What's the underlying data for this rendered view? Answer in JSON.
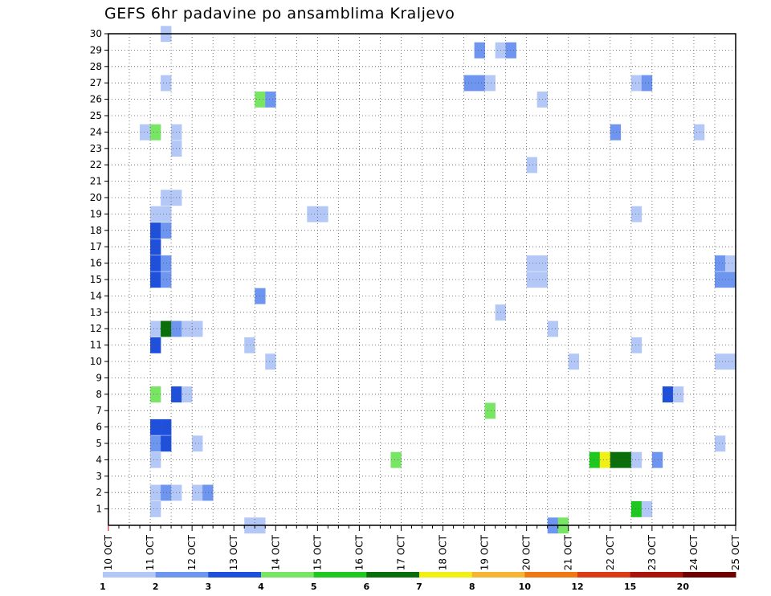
{
  "chart_data": {
    "type": "heatmap",
    "title": "GEFS 6hr padavine po ansamblima Kraljevo",
    "xlabel": "",
    "ylabel": "",
    "x_tick_labels": [
      "10 OCT",
      "11 OCT",
      "12 OCT",
      "13 OCT",
      "14 OCT",
      "15 OCT",
      "16 OCT",
      "17 OCT",
      "18 OCT",
      "19 OCT",
      "20 OCT",
      "21 OCT",
      "22 OCT",
      "23 OCT",
      "24 OCT",
      "25 OCT"
    ],
    "x_range_days": [
      10,
      25
    ],
    "steps_per_day": 4,
    "y_tick_labels": [
      1,
      2,
      3,
      4,
      5,
      6,
      7,
      8,
      9,
      10,
      11,
      12,
      13,
      14,
      15,
      16,
      17,
      18,
      19,
      20,
      21,
      22,
      23,
      24,
      25,
      26,
      27,
      28,
      29,
      30
    ],
    "y_range": [
      0,
      30
    ],
    "grid": true,
    "legend_position": "bottom",
    "legend": {
      "colors": [
        "#b4c8f8",
        "#6e96f0",
        "#1e50dc",
        "#78e664",
        "#1ec81e",
        "#0a6e0a",
        "#f0f014",
        "#f5b432",
        "#f07814",
        "#dc3c14",
        "#aa140a",
        "#6e0000"
      ],
      "labels": [
        "1",
        "2",
        "3",
        "4",
        "5",
        "6",
        "7",
        "8",
        "10",
        "12",
        "15",
        "20"
      ]
    },
    "cells": [
      {
        "member": 30,
        "day": 11.25,
        "cls": 1
      },
      {
        "member": 29,
        "day": 18.75,
        "cls": 2
      },
      {
        "member": 29,
        "day": 19.25,
        "cls": 1
      },
      {
        "member": 29,
        "day": 19.5,
        "cls": 2
      },
      {
        "member": 27,
        "day": 11.25,
        "cls": 1
      },
      {
        "member": 27,
        "day": 18.5,
        "cls": 2
      },
      {
        "member": 27,
        "day": 18.75,
        "cls": 2
      },
      {
        "member": 27,
        "day": 19.0,
        "cls": 1
      },
      {
        "member": 27,
        "day": 22.5,
        "cls": 1
      },
      {
        "member": 27,
        "day": 22.75,
        "cls": 2
      },
      {
        "member": 26,
        "day": 13.5,
        "cls": 4
      },
      {
        "member": 26,
        "day": 13.75,
        "cls": 2
      },
      {
        "member": 26,
        "day": 20.25,
        "cls": 1
      },
      {
        "member": 24,
        "day": 10.75,
        "cls": 1
      },
      {
        "member": 24,
        "day": 11.0,
        "cls": 4
      },
      {
        "member": 24,
        "day": 11.5,
        "cls": 1
      },
      {
        "member": 24,
        "day": 22.0,
        "cls": 2
      },
      {
        "member": 24,
        "day": 24.0,
        "cls": 1
      },
      {
        "member": 23,
        "day": 11.5,
        "cls": 1
      },
      {
        "member": 22,
        "day": 20.0,
        "cls": 1
      },
      {
        "member": 20,
        "day": 11.25,
        "cls": 1
      },
      {
        "member": 20,
        "day": 11.5,
        "cls": 1
      },
      {
        "member": 19,
        "day": 11.0,
        "cls": 1
      },
      {
        "member": 19,
        "day": 11.25,
        "cls": 1
      },
      {
        "member": 19,
        "day": 14.75,
        "cls": 1
      },
      {
        "member": 19,
        "day": 15.0,
        "cls": 1
      },
      {
        "member": 19,
        "day": 22.5,
        "cls": 1
      },
      {
        "member": 18,
        "day": 11.0,
        "cls": 3
      },
      {
        "member": 18,
        "day": 11.25,
        "cls": 2
      },
      {
        "member": 17,
        "day": 11.0,
        "cls": 3
      },
      {
        "member": 16,
        "day": 11.0,
        "cls": 3
      },
      {
        "member": 16,
        "day": 11.25,
        "cls": 2
      },
      {
        "member": 16,
        "day": 20.0,
        "cls": 1
      },
      {
        "member": 16,
        "day": 20.25,
        "cls": 1
      },
      {
        "member": 16,
        "day": 24.5,
        "cls": 2
      },
      {
        "member": 16,
        "day": 24.75,
        "cls": 1
      },
      {
        "member": 15,
        "day": 11.0,
        "cls": 3
      },
      {
        "member": 15,
        "day": 11.25,
        "cls": 2
      },
      {
        "member": 15,
        "day": 20.0,
        "cls": 1
      },
      {
        "member": 15,
        "day": 20.25,
        "cls": 1
      },
      {
        "member": 15,
        "day": 24.5,
        "cls": 2
      },
      {
        "member": 15,
        "day": 24.75,
        "cls": 2
      },
      {
        "member": 14,
        "day": 13.5,
        "cls": 2
      },
      {
        "member": 13,
        "day": 19.25,
        "cls": 1
      },
      {
        "member": 12,
        "day": 11.0,
        "cls": 1
      },
      {
        "member": 12,
        "day": 11.25,
        "cls": 6
      },
      {
        "member": 12,
        "day": 11.5,
        "cls": 2
      },
      {
        "member": 12,
        "day": 11.75,
        "cls": 1
      },
      {
        "member": 12,
        "day": 12.0,
        "cls": 1
      },
      {
        "member": 12,
        "day": 20.5,
        "cls": 1
      },
      {
        "member": 11,
        "day": 11.0,
        "cls": 3
      },
      {
        "member": 11,
        "day": 13.25,
        "cls": 1
      },
      {
        "member": 11,
        "day": 22.5,
        "cls": 1
      },
      {
        "member": 10,
        "day": 13.75,
        "cls": 1
      },
      {
        "member": 10,
        "day": 21.0,
        "cls": 1
      },
      {
        "member": 10,
        "day": 24.5,
        "cls": 1
      },
      {
        "member": 10,
        "day": 24.75,
        "cls": 1
      },
      {
        "member": 8,
        "day": 11.0,
        "cls": 4
      },
      {
        "member": 8,
        "day": 11.5,
        "cls": 3
      },
      {
        "member": 8,
        "day": 11.75,
        "cls": 1
      },
      {
        "member": 8,
        "day": 23.25,
        "cls": 3
      },
      {
        "member": 8,
        "day": 23.5,
        "cls": 1
      },
      {
        "member": 7,
        "day": 19.0,
        "cls": 4
      },
      {
        "member": 6,
        "day": 11.0,
        "cls": 3
      },
      {
        "member": 6,
        "day": 11.25,
        "cls": 3
      },
      {
        "member": 5,
        "day": 11.0,
        "cls": 2
      },
      {
        "member": 5,
        "day": 11.25,
        "cls": 3
      },
      {
        "member": 5,
        "day": 12.0,
        "cls": 1
      },
      {
        "member": 5,
        "day": 24.5,
        "cls": 1
      },
      {
        "member": 4,
        "day": 11.0,
        "cls": 1
      },
      {
        "member": 4,
        "day": 16.75,
        "cls": 4
      },
      {
        "member": 4,
        "day": 21.5,
        "cls": 5
      },
      {
        "member": 4,
        "day": 21.75,
        "cls": 7
      },
      {
        "member": 4,
        "day": 22.0,
        "cls": 6
      },
      {
        "member": 4,
        "day": 22.25,
        "cls": 6
      },
      {
        "member": 4,
        "day": 22.5,
        "cls": 1
      },
      {
        "member": 4,
        "day": 23.0,
        "cls": 2
      },
      {
        "member": 2,
        "day": 11.0,
        "cls": 1
      },
      {
        "member": 2,
        "day": 11.25,
        "cls": 2
      },
      {
        "member": 2,
        "day": 11.5,
        "cls": 1
      },
      {
        "member": 2,
        "day": 12.0,
        "cls": 1
      },
      {
        "member": 2,
        "day": 12.25,
        "cls": 2
      },
      {
        "member": 1,
        "day": 11.0,
        "cls": 1
      },
      {
        "member": 1,
        "day": 22.5,
        "cls": 5
      },
      {
        "member": 1,
        "day": 22.75,
        "cls": 1
      },
      {
        "member": 0,
        "day": 13.25,
        "cls": 1
      },
      {
        "member": 0,
        "day": 13.5,
        "cls": 1
      },
      {
        "member": 0,
        "day": 20.5,
        "cls": 2
      },
      {
        "member": 0,
        "day": 20.75,
        "cls": 4
      }
    ]
  }
}
